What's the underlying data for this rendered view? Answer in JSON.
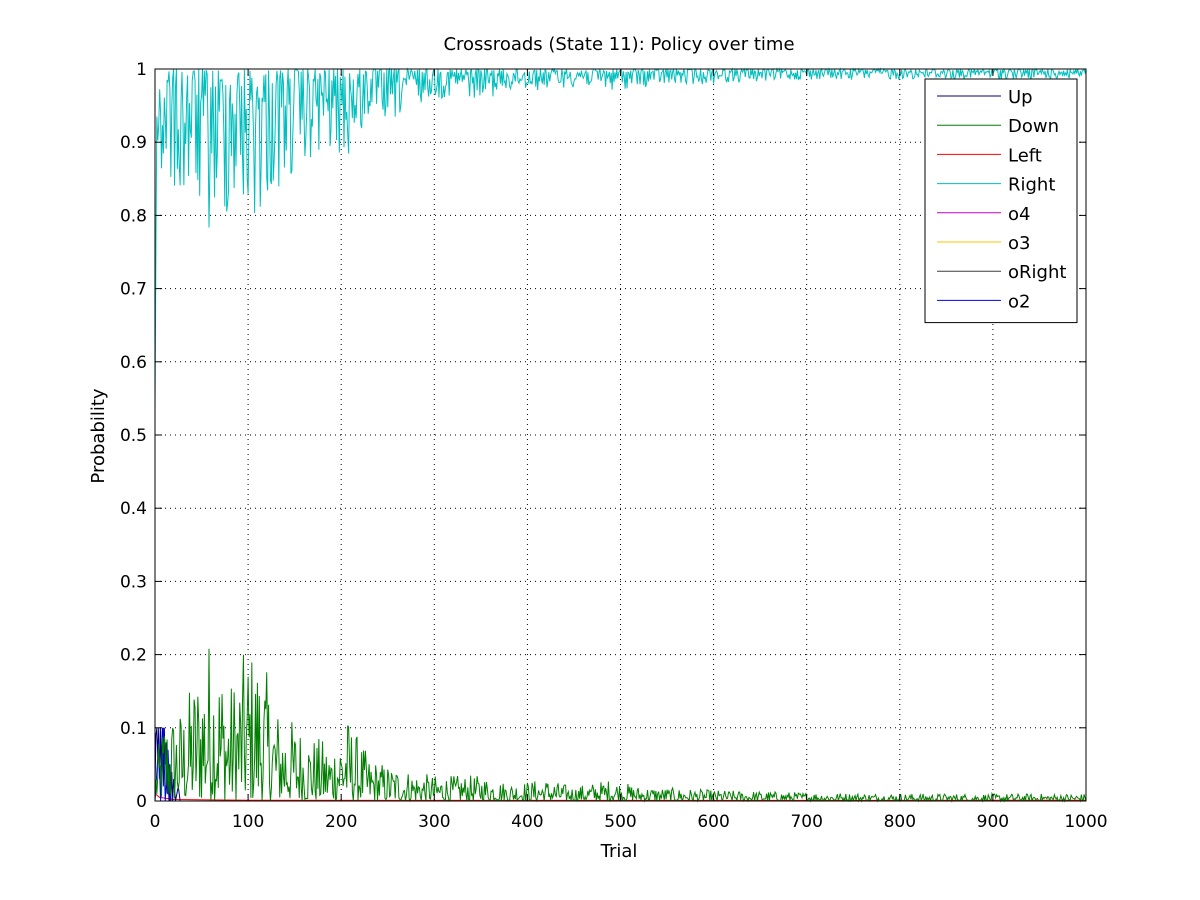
{
  "chart_data": {
    "type": "line",
    "title": "Crossroads (State 11): Policy over time",
    "xlabel": "Trial",
    "ylabel": "Probability",
    "xlim": [
      0,
      1000
    ],
    "ylim": [
      0,
      1
    ],
    "xticks": [
      "0",
      "100",
      "200",
      "300",
      "400",
      "500",
      "600",
      "700",
      "800",
      "900",
      "1000"
    ],
    "yticks": [
      "0",
      "0.1",
      "0.2",
      "0.3",
      "0.4",
      "0.5",
      "0.6",
      "0.7",
      "0.8",
      "0.9",
      "1"
    ],
    "grid": true,
    "legend_position": "top-right",
    "series": [
      {
        "name": "Up",
        "color": "#00007f",
        "points": [
          [
            0,
            0.02
          ],
          [
            1,
            0.09
          ],
          [
            2,
            0.1
          ],
          [
            3,
            0.06
          ],
          [
            4,
            0.1
          ],
          [
            5,
            0.03
          ],
          [
            6,
            0.1
          ],
          [
            7,
            0.04
          ],
          [
            8,
            0.1
          ],
          [
            9,
            0.02
          ],
          [
            10,
            0.1
          ],
          [
            11,
            0.05
          ],
          [
            12,
            0.08
          ],
          [
            13,
            0.01
          ],
          [
            14,
            0.06
          ],
          [
            15,
            0.0
          ],
          [
            16,
            0.05
          ],
          [
            17,
            0.0
          ],
          [
            18,
            0.04
          ],
          [
            19,
            0.0
          ],
          [
            20,
            0.03
          ],
          [
            22,
            0.0
          ],
          [
            25,
            0.02
          ],
          [
            27,
            0.0
          ],
          [
            30,
            0.0
          ],
          [
            1000,
            0.0
          ]
        ]
      },
      {
        "name": "Down",
        "color": "#007f00",
        "envelope": [
          [
            0,
            0.05
          ],
          [
            10,
            0.12
          ],
          [
            30,
            0.13
          ],
          [
            50,
            0.2
          ],
          [
            60,
            0.235
          ],
          [
            80,
            0.16
          ],
          [
            100,
            0.215
          ],
          [
            115,
            0.2
          ],
          [
            130,
            0.13
          ],
          [
            150,
            0.11
          ],
          [
            170,
            0.09
          ],
          [
            190,
            0.08
          ],
          [
            205,
            0.12
          ],
          [
            230,
            0.06
          ],
          [
            250,
            0.05
          ],
          [
            280,
            0.04
          ],
          [
            300,
            0.035
          ],
          [
            350,
            0.035
          ],
          [
            380,
            0.025
          ],
          [
            420,
            0.03
          ],
          [
            450,
            0.02
          ],
          [
            490,
            0.03
          ],
          [
            520,
            0.02
          ],
          [
            600,
            0.015
          ],
          [
            700,
            0.012
          ],
          [
            800,
            0.01
          ],
          [
            900,
            0.01
          ],
          [
            1000,
            0.01
          ]
        ]
      },
      {
        "name": "Left",
        "color": "#ff0000",
        "points": [
          [
            0,
            0.01
          ],
          [
            5,
            0.005
          ],
          [
            20,
            0.002
          ],
          [
            100,
            0.001
          ],
          [
            500,
            0.0008
          ],
          [
            1000,
            0.001
          ]
        ]
      },
      {
        "name": "Right",
        "color": "#00bfbf",
        "envelope": [
          [
            0,
            0.53
          ],
          [
            3,
            0.78
          ],
          [
            10,
            0.83
          ],
          [
            30,
            0.81
          ],
          [
            50,
            0.8
          ],
          [
            60,
            0.76
          ],
          [
            80,
            0.8
          ],
          [
            100,
            0.78
          ],
          [
            115,
            0.8
          ],
          [
            140,
            0.84
          ],
          [
            170,
            0.87
          ],
          [
            200,
            0.88
          ],
          [
            210,
            0.87
          ],
          [
            230,
            0.93
          ],
          [
            250,
            0.92
          ],
          [
            280,
            0.95
          ],
          [
            300,
            0.96
          ],
          [
            350,
            0.96
          ],
          [
            400,
            0.97
          ],
          [
            450,
            0.975
          ],
          [
            500,
            0.97
          ],
          [
            530,
            0.975
          ],
          [
            600,
            0.98
          ],
          [
            700,
            0.985
          ],
          [
            800,
            0.985
          ],
          [
            900,
            0.985
          ],
          [
            1000,
            0.985
          ]
        ]
      },
      {
        "name": "o4",
        "color": "#bf00bf",
        "points": [
          [
            0,
            0.0
          ],
          [
            1000,
            0.0
          ]
        ]
      },
      {
        "name": "o3",
        "color": "#ffbf00",
        "points": [
          [
            0,
            0.0
          ],
          [
            1000,
            0.0
          ]
        ]
      },
      {
        "name": "oRight",
        "color": "#3f3f3f",
        "points": [
          [
            0,
            0.0
          ],
          [
            1000,
            0.0
          ]
        ]
      },
      {
        "name": "o2",
        "color": "#0000ff",
        "points": [
          [
            0,
            0.0
          ],
          [
            4,
            0.08
          ],
          [
            6,
            0.0
          ],
          [
            9,
            0.1
          ],
          [
            11,
            0.0
          ],
          [
            14,
            0.07
          ],
          [
            16,
            0.0
          ],
          [
            1000,
            0.0
          ]
        ]
      }
    ]
  }
}
